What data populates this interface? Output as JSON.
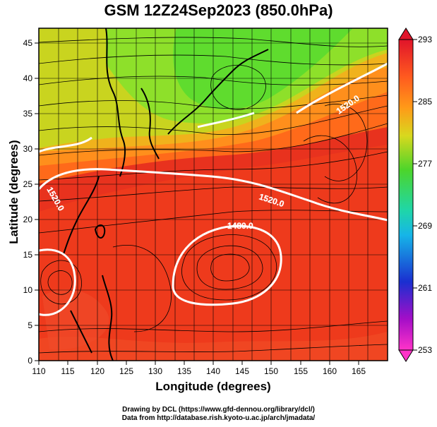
{
  "title": "GSM 12Z24Sep2023 (850.0hPa)",
  "axes": {
    "xlabel": "Longitude (degrees)",
    "ylabel": "Latitude  (degrees)",
    "x_ticks": [
      "110",
      "115",
      "120",
      "125",
      "130",
      "135",
      "140",
      "145",
      "150",
      "155",
      "160",
      "165"
    ],
    "y_ticks": [
      "0",
      "5",
      "10",
      "15",
      "20",
      "25",
      "30",
      "35",
      "40",
      "45"
    ]
  },
  "colorbar": {
    "labels": [
      "293",
      "285",
      "277",
      "269",
      "261",
      "253"
    ],
    "colors": [
      "#e0142a",
      "#ff9a18",
      "#4cd52b",
      "#16b5e8",
      "#1a2fd0",
      "#a40ec8",
      "#ff33c8"
    ]
  },
  "contours": {
    "labels": [
      "1520.0",
      "1520.0",
      "1480.0",
      "1520.0"
    ]
  },
  "credits": {
    "line1": "Drawing by DCL (https://www.gfd-dennou.org/library/dcl/)",
    "line2": "Data from http://database.rish.kyoto-u.ac.jp/arch/jmadata/"
  },
  "chart_data": {
    "type": "heatmap",
    "variable": "temperature",
    "unit": "K",
    "level_hPa": 850.0,
    "x_range": [
      110,
      170
    ],
    "y_range": [
      0,
      50
    ],
    "color_range": [
      253,
      293
    ],
    "colorbar_ticks": [
      293,
      285,
      277,
      269,
      261,
      253
    ],
    "geopotential_contours": [
      1480.0,
      1520.0
    ],
    "overlay": "streamlines"
  }
}
